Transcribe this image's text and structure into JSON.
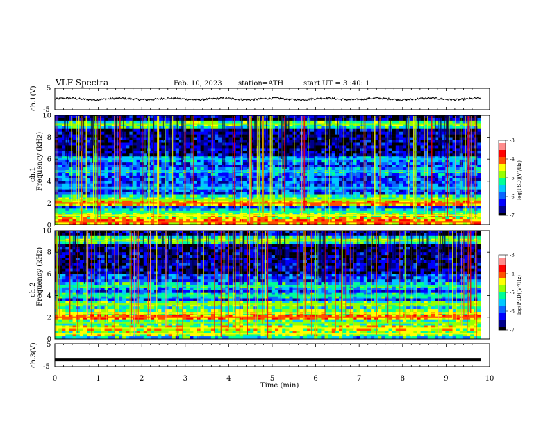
{
  "header": {
    "title": "VLF  Spectra",
    "date": "Feb. 10, 2023",
    "station": "station=ATH",
    "start": "start  UT  =   3  :40: 1"
  },
  "chart_data": [
    {
      "type": "line",
      "name": "ch1-voltage",
      "ylabel": "ch.1(V)",
      "ylim": [
        -5,
        5
      ],
      "xlim": [
        0,
        10
      ],
      "y_ticks": [
        "5",
        "-5"
      ],
      "trace": {
        "mean": 0.0,
        "x_end": 9.8,
        "color": "#000000"
      }
    },
    {
      "type": "heatmap",
      "name": "ch1-spectrogram",
      "ylabel_top": "ch.1",
      "ylabel": "Frequency  (kHz)",
      "ylim": [
        0,
        10
      ],
      "xlim": [
        0,
        10
      ],
      "x_end": 9.8,
      "y_ticks": [
        "0",
        "2",
        "4",
        "6",
        "8",
        "10"
      ],
      "colorbar": {
        "label": "log(PSD)(V²/Hz)",
        "range": [
          -7,
          -3
        ],
        "ticks": [
          "-3",
          "-4",
          "-5",
          "-6",
          "-7"
        ]
      },
      "bands_khz": [
        {
          "center": 0.3,
          "psd": -4.0
        },
        {
          "center": 0.9,
          "psd": -4.6
        },
        {
          "center": 1.2,
          "psd": -5.2
        },
        {
          "center": 2.0,
          "psd": -4.2
        },
        {
          "center": 2.3,
          "psd": -4.8
        },
        {
          "center": 3.4,
          "psd": -5.6
        },
        {
          "center": 4.9,
          "psd": -5.4
        },
        {
          "center": 6.0,
          "psd": -5.6
        },
        {
          "center": 9.2,
          "psd": -4.9
        }
      ]
    },
    {
      "type": "heatmap",
      "name": "ch2-spectrogram",
      "ylabel_top": "ch.2",
      "ylabel": "Frequency  (kHz)",
      "ylim": [
        0,
        10
      ],
      "xlim": [
        0,
        10
      ],
      "x_end": 9.8,
      "y_ticks": [
        "0",
        "2",
        "4",
        "6",
        "8",
        "10"
      ],
      "colorbar": {
        "label": "log(PSD)(V²/Hz)",
        "range": [
          -7,
          -3
        ],
        "ticks": [
          "-3",
          "-4",
          "-5",
          "-6",
          "-7"
        ]
      },
      "bands_khz": [
        {
          "center": 0.5,
          "psd": -4.6
        },
        {
          "center": 1.0,
          "psd": -4.4
        },
        {
          "center": 1.5,
          "psd": -4.9
        },
        {
          "center": 2.0,
          "psd": -4.0
        },
        {
          "center": 2.4,
          "psd": -4.6
        },
        {
          "center": 3.2,
          "psd": -4.8
        },
        {
          "center": 4.0,
          "psd": -5.3
        },
        {
          "center": 4.9,
          "psd": -5.2
        },
        {
          "center": 9.1,
          "psd": -4.9
        }
      ]
    },
    {
      "type": "line",
      "name": "ch3-voltage",
      "ylabel": "ch.3(V)",
      "xlabel": "Time  (min)",
      "ylim": [
        -5,
        5
      ],
      "xlim": [
        0,
        10
      ],
      "y_ticks": [
        "5",
        "-5"
      ],
      "x_ticks": [
        "0",
        "1",
        "2",
        "3",
        "4",
        "5",
        "6",
        "7",
        "8",
        "9",
        "10"
      ],
      "trace": {
        "mean": -2.0,
        "x_end": 9.8,
        "color": "#000000"
      }
    }
  ],
  "colors": {
    "frame": "#000000",
    "colormap": [
      "#000000",
      "#00008b",
      "#0000ff",
      "#0a64ff",
      "#00c8ff",
      "#00ff96",
      "#96ff00",
      "#ffff00",
      "#ff5000",
      "#ff0000",
      "#ff8c8c",
      "#ffffff"
    ]
  }
}
